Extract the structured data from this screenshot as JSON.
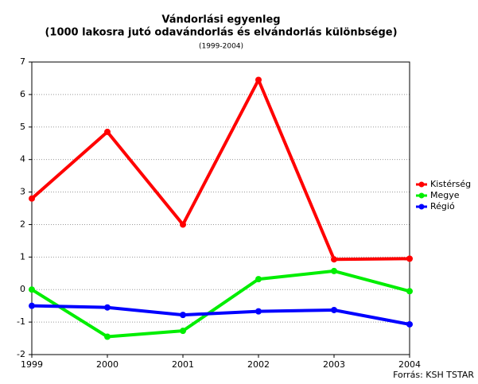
{
  "chart_data": {
    "type": "line",
    "title": "Vándorlási egyenleg",
    "subtitle": "(1000 lakosra jutó odavándorlás és elvándorlás különbsége)",
    "period": "(1999-2004)",
    "source": "Forrás: KSH TSTAR",
    "x": [
      1999,
      2000,
      2001,
      2002,
      2003,
      2004
    ],
    "xlim": [
      1999,
      2004
    ],
    "xticks": [
      1999,
      2000,
      2001,
      2002,
      2003,
      2004
    ],
    "ylim": [
      -2,
      7
    ],
    "yticks": [
      -2,
      -1,
      0,
      1,
      2,
      3,
      4,
      5,
      6,
      7
    ],
    "grid": true,
    "legend": "right",
    "series": [
      {
        "name": "Kistérség",
        "color": "#ff0000",
        "values": [
          2.8,
          4.85,
          2.0,
          6.45,
          0.93,
          0.95
        ]
      },
      {
        "name": "Megye",
        "color": "#00ee00",
        "values": [
          0.0,
          -1.45,
          -1.27,
          0.32,
          0.57,
          -0.05
        ]
      },
      {
        "name": "Régió",
        "color": "#0000ff",
        "values": [
          -0.5,
          -0.55,
          -0.78,
          -0.67,
          -0.63,
          -1.07
        ]
      }
    ]
  }
}
